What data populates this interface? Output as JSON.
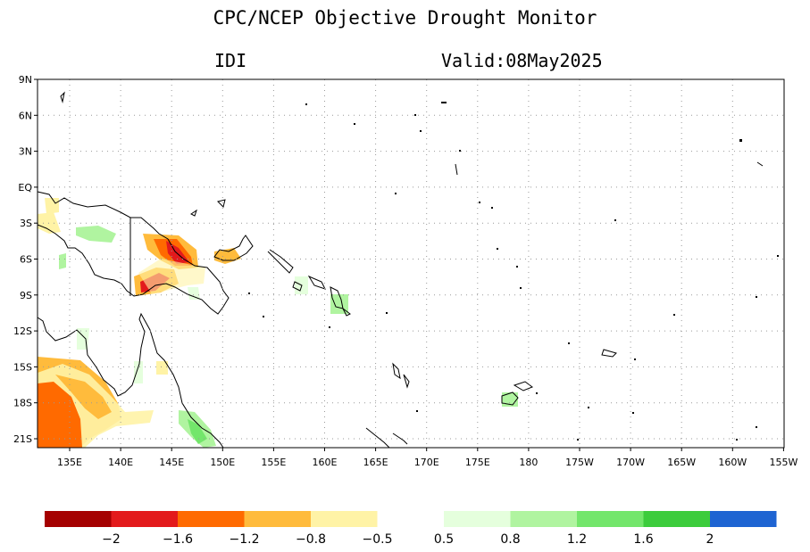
{
  "header": {
    "title": "CPC/NCEP Objective Drought Monitor",
    "index_label": "IDI",
    "valid_label": "Valid:08May2025"
  },
  "map": {
    "lat_ticks": [
      "9N",
      "6N",
      "3N",
      "EQ",
      "3S",
      "6S",
      "9S",
      "12S",
      "15S",
      "18S",
      "21S"
    ],
    "lon_ticks": [
      "135E",
      "140E",
      "145E",
      "150E",
      "155E",
      "160E",
      "165E",
      "170E",
      "175E",
      "180",
      "175W",
      "170W",
      "165W",
      "160W",
      "155W"
    ],
    "grid": "dotted",
    "coastline_color": "#000000"
  },
  "legend": {
    "colors": [
      "#a50000",
      "#e31a1c",
      "#ff6a00",
      "#ffbb3c",
      "#fff3a6",
      "#ffffff",
      "#e5ffdd",
      "#b0f4a0",
      "#73e66b",
      "#3ccc3c",
      "#1e64d2"
    ],
    "labels": [
      "−2",
      "−1.6",
      "−1.2",
      "−0.8",
      "−0.5",
      "0.5",
      "0.8",
      "1.2",
      "1.6",
      "2"
    ]
  }
}
